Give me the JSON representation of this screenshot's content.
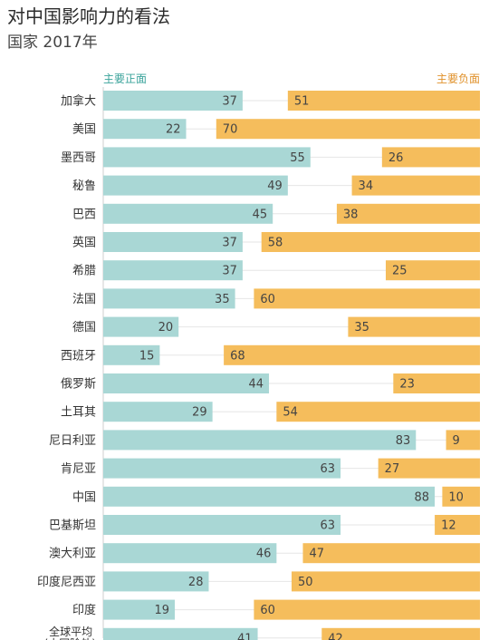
{
  "title": "对中国影响力的看法",
  "subtitle": "国家 2017年",
  "colors": {
    "positive": "#a9d7d5",
    "negative": "#f5bd5c",
    "positive_text": "#3aa39b",
    "negative_text": "#e0912a",
    "grid": "#e6e6e6"
  },
  "chart_data": {
    "type": "bar",
    "categories": [
      "加拿大",
      "美国",
      "墨西哥",
      "秘鲁",
      "巴西",
      "英国",
      "希腊",
      "法国",
      "德国",
      "西班牙",
      "俄罗斯",
      "土耳其",
      "尼日利亚",
      "肯尼亚",
      "中国",
      "巴基斯坦",
      "澳大利亚",
      "印度尼西亚",
      "印度",
      "全球平均 (中国除外)"
    ],
    "series": [
      {
        "name": "主要正面",
        "values": [
          37,
          22,
          55,
          49,
          45,
          37,
          37,
          35,
          20,
          15,
          44,
          29,
          83,
          63,
          88,
          63,
          46,
          28,
          19,
          41
        ]
      },
      {
        "name": "主要负面",
        "values": [
          51,
          70,
          26,
          34,
          38,
          58,
          25,
          60,
          35,
          68,
          23,
          54,
          9,
          27,
          10,
          12,
          47,
          50,
          60,
          42
        ]
      }
    ],
    "xlim": [
      0,
      100
    ]
  }
}
